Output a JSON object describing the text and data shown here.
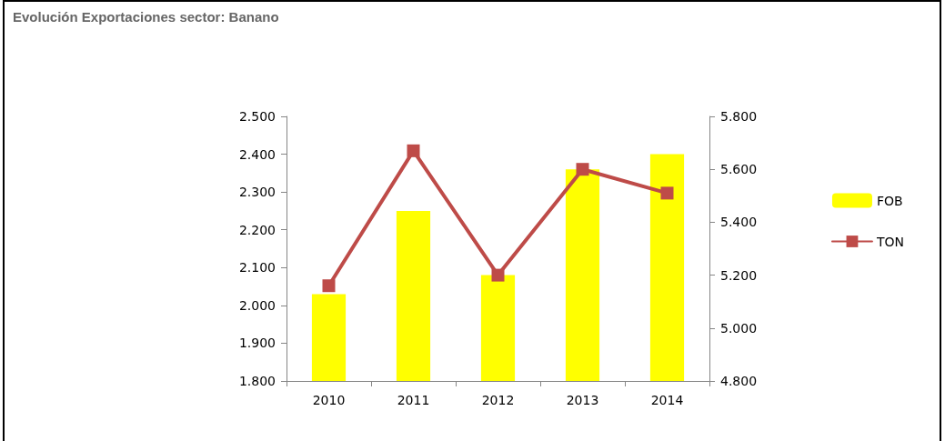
{
  "chart_data": {
    "type": "bar",
    "title": "Evolución Exportaciones sector: Banano",
    "categories": [
      "2010",
      "2011",
      "2012",
      "2013",
      "2014"
    ],
    "series": [
      {
        "name": "FOB",
        "color": "#ffff00",
        "values": [
          2030,
          2250,
          2080,
          2360,
          2400
        ]
      },
      {
        "name": "TON",
        "type": "line",
        "axis": "y2",
        "color": "#be4b48",
        "marker": "square",
        "values": [
          5160,
          5670,
          5200,
          5600,
          5510
        ]
      }
    ],
    "ylim": [
      1800,
      2500
    ],
    "yticks": [
      {
        "value": 1800,
        "label": "1.800"
      },
      {
        "value": 1900,
        "label": "1.900"
      },
      {
        "value": 2000,
        "label": "2.000"
      },
      {
        "value": 2100,
        "label": "2.100"
      },
      {
        "value": 2200,
        "label": "2.200"
      },
      {
        "value": 2300,
        "label": "2.300"
      },
      {
        "value": 2400,
        "label": "2.400"
      },
      {
        "value": 2500,
        "label": "2.500"
      }
    ],
    "y2lim": [
      4800,
      5800
    ],
    "y2ticks": [
      {
        "value": 4800,
        "label": "4.800"
      },
      {
        "value": 5000,
        "label": "5.000"
      },
      {
        "value": 5200,
        "label": "5.200"
      },
      {
        "value": 5400,
        "label": "5.400"
      },
      {
        "value": 5600,
        "label": "5.600"
      },
      {
        "value": 5800,
        "label": "5.800"
      }
    ],
    "grid": false,
    "legend": "right"
  }
}
